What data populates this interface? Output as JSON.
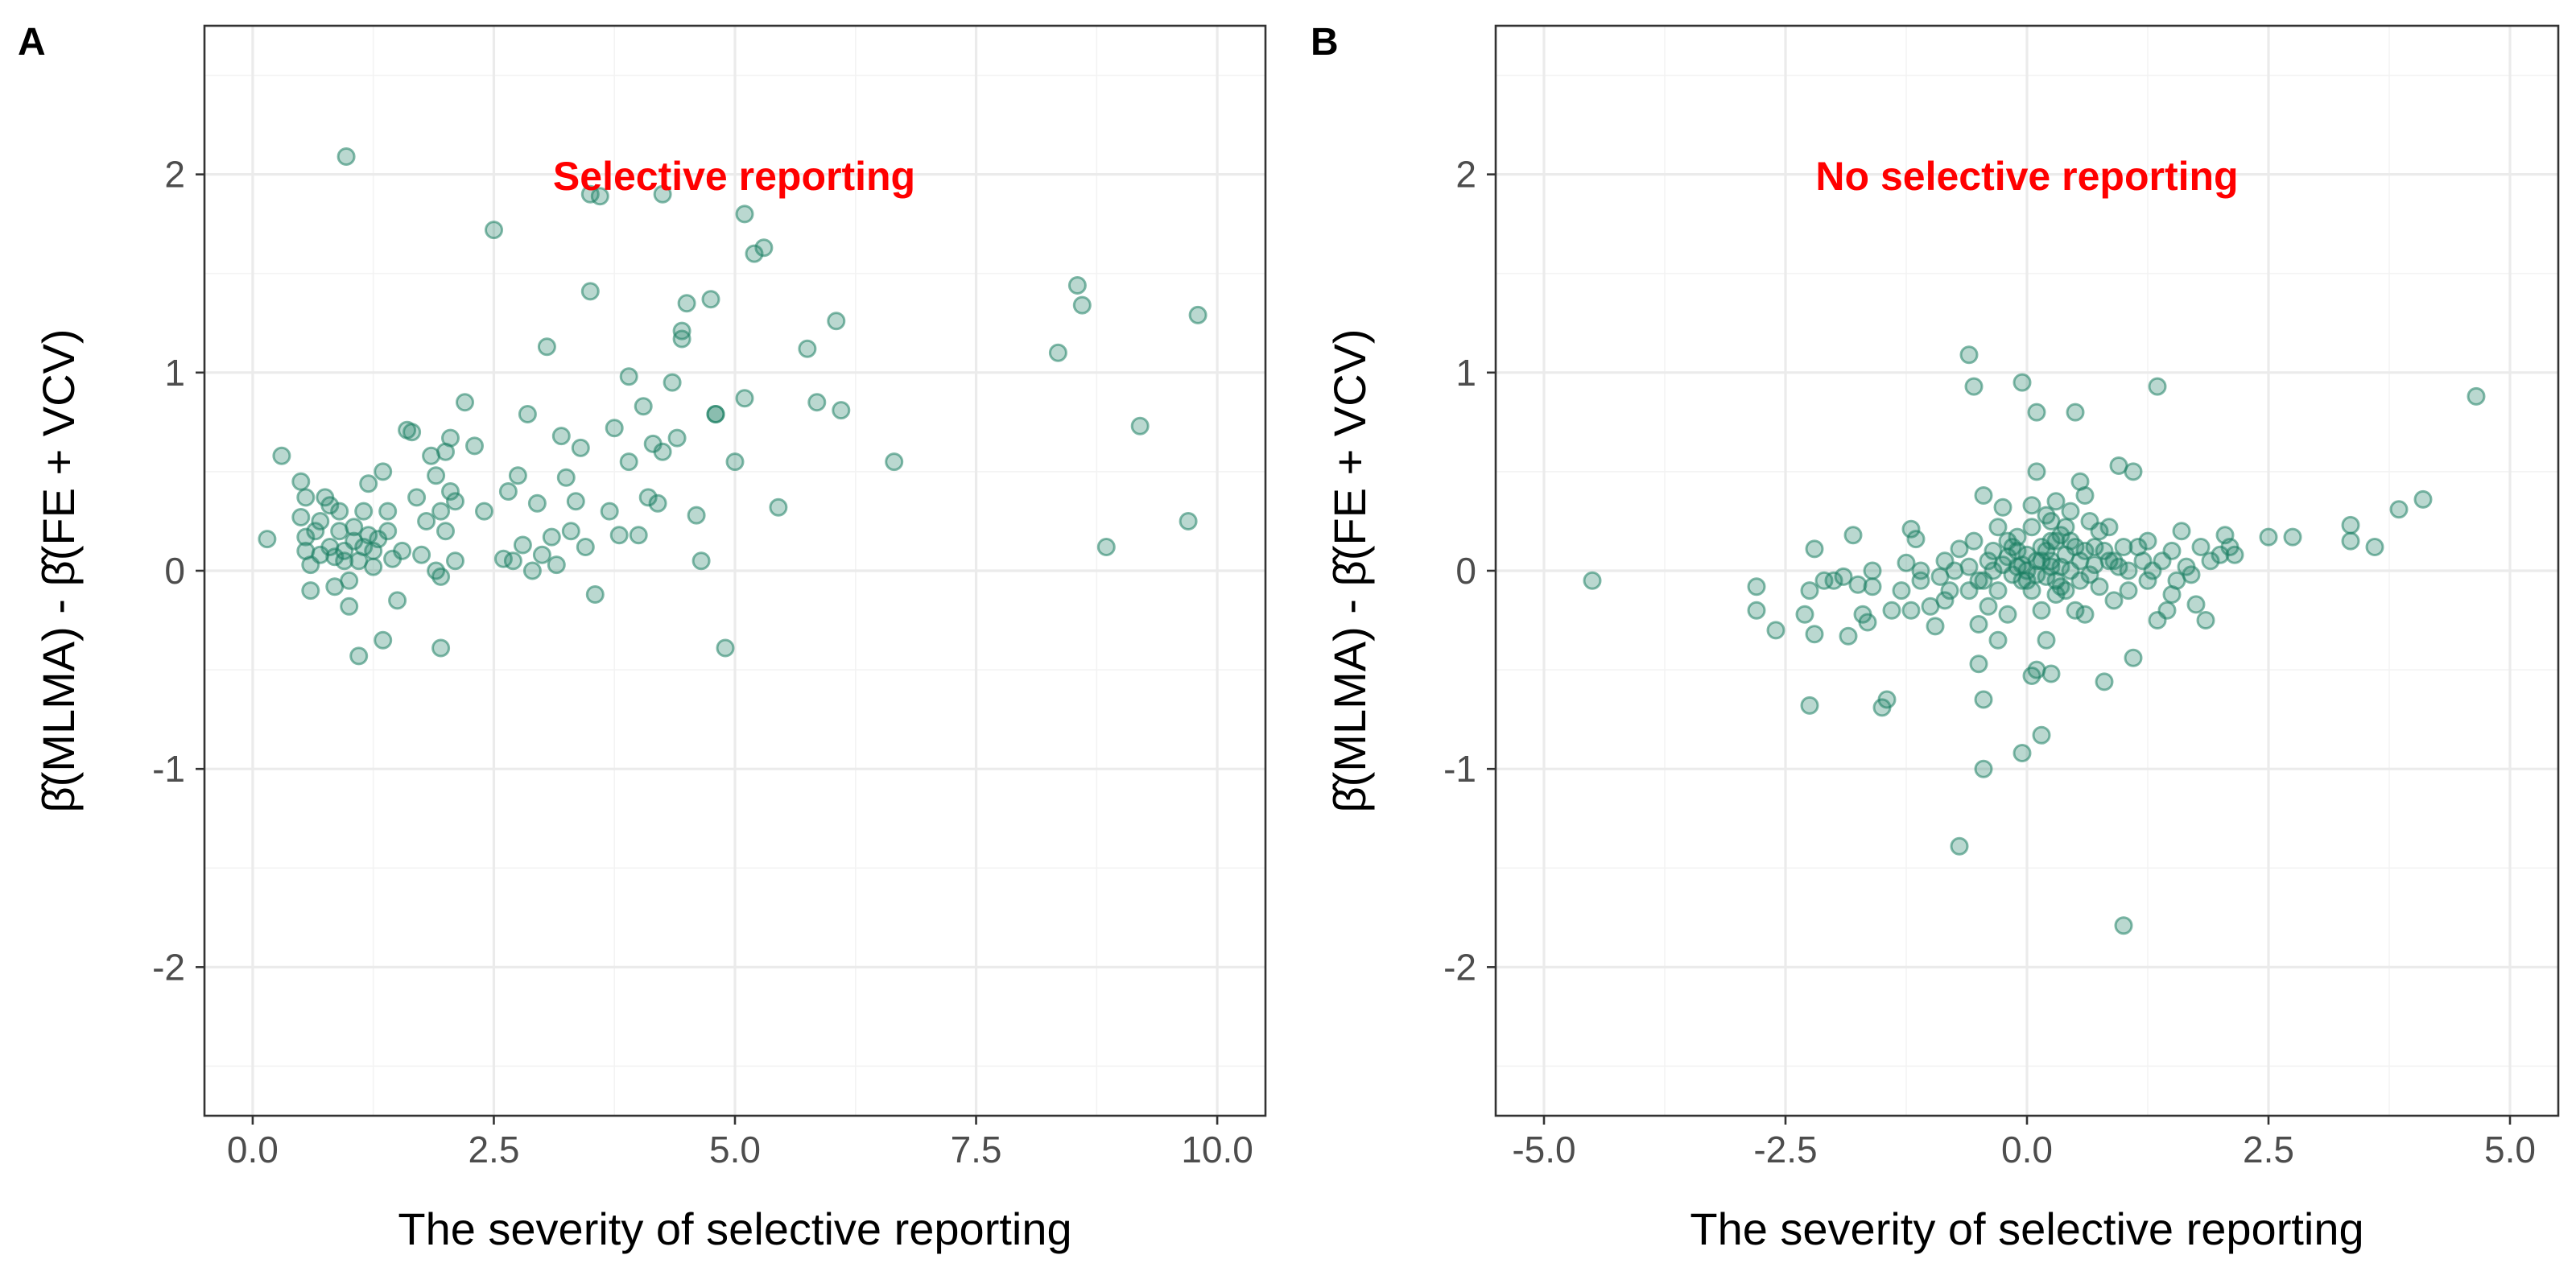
{
  "chart_data": [
    {
      "type": "scatter",
      "panel": "A",
      "annotation": "Selective reporting",
      "xlabel": "The severity of selective reporting",
      "ylabel": "β̂(MLMA) - β̂(FE + VCV)",
      "xlim": [
        -0.5,
        10.5
      ],
      "ylim": [
        -2.75,
        2.75
      ],
      "x_ticks": [
        0,
        2.5,
        5,
        7.5,
        10
      ],
      "x_tick_labels": [
        "0.0",
        "2.5",
        "5.0",
        "7.5",
        "10.0"
      ],
      "y_ticks": [
        -2,
        -1,
        0,
        1,
        2
      ],
      "y_tick_labels": [
        "-2",
        "-1",
        "0",
        "1",
        "2"
      ],
      "grid": true,
      "point_color": "#1b7f63",
      "annotation_color": "#ff0000",
      "points": [
        [
          0.15,
          0.16
        ],
        [
          0.3,
          0.58
        ],
        [
          0.5,
          0.45
        ],
        [
          0.5,
          0.27
        ],
        [
          0.55,
          0.37
        ],
        [
          0.55,
          0.17
        ],
        [
          0.55,
          0.1
        ],
        [
          0.6,
          0.03
        ],
        [
          0.6,
          -0.1
        ],
        [
          0.7,
          0.25
        ],
        [
          0.7,
          0.08
        ],
        [
          0.75,
          0.37
        ],
        [
          0.8,
          0.33
        ],
        [
          0.8,
          0.12
        ],
        [
          0.85,
          -0.08
        ],
        [
          0.85,
          0.07
        ],
        [
          0.9,
          0.3
        ],
        [
          0.9,
          0.2
        ],
        [
          0.95,
          0.1
        ],
        [
          0.95,
          0.05
        ],
        [
          0.97,
          2.09
        ],
        [
          1.0,
          -0.18
        ],
        [
          1.0,
          -0.05
        ],
        [
          1.05,
          0.15
        ],
        [
          1.05,
          0.22
        ],
        [
          1.1,
          -0.43
        ],
        [
          1.1,
          0.05
        ],
        [
          1.15,
          0.3
        ],
        [
          1.15,
          0.12
        ],
        [
          1.2,
          0.18
        ],
        [
          1.2,
          0.44
        ],
        [
          1.25,
          0.1
        ],
        [
          1.25,
          0.02
        ],
        [
          1.3,
          0.16
        ],
        [
          1.35,
          0.5
        ],
        [
          1.4,
          0.3
        ],
        [
          1.4,
          0.2
        ],
        [
          1.45,
          0.06
        ],
        [
          1.5,
          -0.15
        ],
        [
          1.55,
          0.1
        ],
        [
          1.6,
          0.71
        ],
        [
          1.65,
          0.7
        ],
        [
          1.7,
          0.37
        ],
        [
          1.75,
          0.08
        ],
        [
          1.8,
          0.25
        ],
        [
          1.85,
          0.58
        ],
        [
          1.9,
          0.0
        ],
        [
          1.9,
          0.48
        ],
        [
          1.95,
          -0.03
        ],
        [
          1.95,
          0.3
        ],
        [
          2.0,
          0.6
        ],
        [
          2.0,
          0.2
        ],
        [
          2.05,
          0.4
        ],
        [
          2.05,
          0.67
        ],
        [
          2.1,
          0.35
        ],
        [
          2.1,
          0.05
        ],
        [
          2.2,
          0.85
        ],
        [
          2.3,
          0.63
        ],
        [
          2.4,
          0.3
        ],
        [
          2.5,
          1.72
        ],
        [
          2.6,
          0.06
        ],
        [
          2.65,
          0.4
        ],
        [
          2.7,
          0.05
        ],
        [
          2.75,
          0.48
        ],
        [
          2.8,
          0.13
        ],
        [
          2.85,
          0.79
        ],
        [
          2.9,
          0.0
        ],
        [
          2.95,
          0.34
        ],
        [
          3.0,
          0.08
        ],
        [
          3.05,
          1.13
        ],
        [
          3.1,
          0.17
        ],
        [
          3.15,
          0.03
        ],
        [
          3.2,
          0.68
        ],
        [
          3.25,
          0.47
        ],
        [
          3.3,
          0.2
        ],
        [
          3.35,
          0.35
        ],
        [
          3.4,
          0.62
        ],
        [
          3.45,
          0.12
        ],
        [
          3.5,
          1.9
        ],
        [
          3.5,
          1.41
        ],
        [
          3.55,
          -0.12
        ],
        [
          3.6,
          1.89
        ],
        [
          3.7,
          0.3
        ],
        [
          3.75,
          0.72
        ],
        [
          3.8,
          0.18
        ],
        [
          3.9,
          0.55
        ],
        [
          3.9,
          0.98
        ],
        [
          4.0,
          0.18
        ],
        [
          4.05,
          0.83
        ],
        [
          4.1,
          0.37
        ],
        [
          4.15,
          0.64
        ],
        [
          4.2,
          0.34
        ],
        [
          4.25,
          1.9
        ],
        [
          4.25,
          0.6
        ],
        [
          4.35,
          0.95
        ],
        [
          4.4,
          0.67
        ],
        [
          4.45,
          1.21
        ],
        [
          4.45,
          1.17
        ],
        [
          4.5,
          1.35
        ],
        [
          4.6,
          0.28
        ],
        [
          4.65,
          0.05
        ],
        [
          4.75,
          1.37
        ],
        [
          4.8,
          0.79
        ],
        [
          4.8,
          0.79
        ],
        [
          4.9,
          -0.39
        ],
        [
          5.0,
          0.55
        ],
        [
          5.1,
          0.87
        ],
        [
          5.1,
          1.8
        ],
        [
          5.2,
          1.6
        ],
        [
          5.3,
          1.63
        ],
        [
          5.45,
          0.32
        ],
        [
          5.75,
          1.12
        ],
        [
          5.85,
          0.85
        ],
        [
          6.05,
          1.26
        ],
        [
          6.1,
          0.81
        ],
        [
          6.65,
          0.55
        ],
        [
          8.35,
          1.1
        ],
        [
          8.55,
          1.44
        ],
        [
          8.6,
          1.34
        ],
        [
          8.85,
          0.12
        ],
        [
          9.2,
          0.73
        ],
        [
          9.7,
          0.25
        ],
        [
          9.8,
          1.29
        ],
        [
          1.35,
          -0.35
        ],
        [
          1.95,
          -0.39
        ],
        [
          0.65,
          0.2
        ]
      ]
    },
    {
      "type": "scatter",
      "panel": "B",
      "annotation": "No selective reporting",
      "xlabel": "The severity of selective reporting",
      "ylabel": "β̂(MLMA) - β̂(FE + VCV)",
      "xlim": [
        -5.5,
        5.5
      ],
      "ylim": [
        -2.75,
        2.75
      ],
      "x_ticks": [
        -5,
        -2.5,
        0,
        2.5,
        5
      ],
      "x_tick_labels": [
        "-5.0",
        "-2.5",
        "0.0",
        "2.5",
        "5.0"
      ],
      "y_ticks": [
        -2,
        -1,
        0,
        1,
        2
      ],
      "y_tick_labels": [
        "-2",
        "-1",
        "0",
        "1",
        "2"
      ],
      "grid": true,
      "point_color": "#1b7f63",
      "annotation_color": "#ff0000",
      "points": [
        [
          -4.5,
          -0.05
        ],
        [
          -2.8,
          -0.08
        ],
        [
          -2.8,
          -0.2
        ],
        [
          -2.6,
          -0.3
        ],
        [
          -2.3,
          -0.22
        ],
        [
          -2.25,
          -0.68
        ],
        [
          -2.25,
          -0.1
        ],
        [
          -2.2,
          -0.32
        ],
        [
          -2.2,
          0.11
        ],
        [
          -2.1,
          -0.05
        ],
        [
          -2.0,
          -0.05
        ],
        [
          -1.9,
          -0.03
        ],
        [
          -1.85,
          -0.33
        ],
        [
          -1.8,
          0.18
        ],
        [
          -1.75,
          -0.07
        ],
        [
          -1.7,
          -0.22
        ],
        [
          -1.65,
          -0.26
        ],
        [
          -1.6,
          0.0
        ],
        [
          -1.6,
          -0.08
        ],
        [
          -1.5,
          -0.69
        ],
        [
          -1.45,
          -0.65
        ],
        [
          -1.4,
          -0.2
        ],
        [
          -1.3,
          -0.1
        ],
        [
          -1.25,
          0.04
        ],
        [
          -1.2,
          -0.2
        ],
        [
          -1.2,
          0.21
        ],
        [
          -1.15,
          0.16
        ],
        [
          -1.1,
          0.0
        ],
        [
          -1.1,
          -0.05
        ],
        [
          -1.0,
          -0.18
        ],
        [
          -0.95,
          -0.28
        ],
        [
          -0.9,
          -0.03
        ],
        [
          -0.85,
          0.05
        ],
        [
          -0.85,
          -0.15
        ],
        [
          -0.8,
          -0.1
        ],
        [
          -0.75,
          0.0
        ],
        [
          -0.7,
          -1.39
        ],
        [
          -0.7,
          0.11
        ],
        [
          -0.6,
          1.09
        ],
        [
          -0.6,
          -0.1
        ],
        [
          -0.55,
          0.93
        ],
        [
          -0.55,
          0.15
        ],
        [
          -0.5,
          -0.27
        ],
        [
          -0.5,
          -0.05
        ],
        [
          -0.5,
          -0.47
        ],
        [
          -0.45,
          -0.05
        ],
        [
          -0.45,
          0.38
        ],
        [
          -0.45,
          -0.65
        ],
        [
          -0.45,
          -1.0
        ],
        [
          -0.4,
          0.05
        ],
        [
          -0.4,
          -0.18
        ],
        [
          -0.35,
          0.0
        ],
        [
          -0.35,
          0.1
        ],
        [
          -0.3,
          0.22
        ],
        [
          -0.3,
          -0.35
        ],
        [
          -0.25,
          0.32
        ],
        [
          -0.25,
          0.03
        ],
        [
          -0.2,
          0.07
        ],
        [
          -0.2,
          -0.22
        ],
        [
          -0.15,
          0.12
        ],
        [
          -0.15,
          -0.02
        ],
        [
          -0.1,
          0.02
        ],
        [
          -0.1,
          0.17
        ],
        [
          -0.05,
          0.95
        ],
        [
          -0.05,
          -0.92
        ],
        [
          -0.05,
          -0.05
        ],
        [
          0.0,
          0.0
        ],
        [
          0.0,
          0.08
        ],
        [
          0.05,
          -0.1
        ],
        [
          0.05,
          -0.53
        ],
        [
          0.05,
          0.22
        ],
        [
          0.1,
          0.5
        ],
        [
          0.1,
          0.8
        ],
        [
          0.1,
          -0.5
        ],
        [
          0.1,
          0.05
        ],
        [
          0.15,
          -0.2
        ],
        [
          0.15,
          0.12
        ],
        [
          0.15,
          -0.83
        ],
        [
          0.2,
          0.1
        ],
        [
          0.2,
          -0.03
        ],
        [
          0.2,
          -0.35
        ],
        [
          0.25,
          0.25
        ],
        [
          0.25,
          -0.52
        ],
        [
          0.25,
          0.05
        ],
        [
          0.3,
          0.15
        ],
        [
          0.3,
          -0.05
        ],
        [
          0.3,
          0.35
        ],
        [
          0.35,
          0.02
        ],
        [
          0.35,
          0.18
        ],
        [
          0.4,
          -0.1
        ],
        [
          0.4,
          0.08
        ],
        [
          0.45,
          0.3
        ],
        [
          0.45,
          0.0
        ],
        [
          0.5,
          0.8
        ],
        [
          0.5,
          -0.2
        ],
        [
          0.5,
          0.12
        ],
        [
          0.55,
          0.45
        ],
        [
          0.55,
          -0.05
        ],
        [
          0.6,
          0.38
        ],
        [
          0.6,
          0.1
        ],
        [
          0.6,
          -0.22
        ],
        [
          0.65,
          0.25
        ],
        [
          0.7,
          0.03
        ],
        [
          0.75,
          0.2
        ],
        [
          0.75,
          -0.08
        ],
        [
          0.8,
          0.1
        ],
        [
          0.8,
          -0.56
        ],
        [
          0.85,
          0.22
        ],
        [
          0.9,
          0.05
        ],
        [
          0.95,
          0.02
        ],
        [
          0.95,
          0.53
        ],
        [
          1.0,
          -1.79
        ],
        [
          1.0,
          0.12
        ],
        [
          1.05,
          0.0
        ],
        [
          1.05,
          -0.1
        ],
        [
          1.1,
          0.5
        ],
        [
          1.1,
          -0.44
        ],
        [
          1.15,
          0.12
        ],
        [
          1.2,
          0.05
        ],
        [
          1.25,
          0.15
        ],
        [
          1.3,
          0.0
        ],
        [
          1.35,
          0.93
        ],
        [
          1.35,
          -0.25
        ],
        [
          1.4,
          0.05
        ],
        [
          1.45,
          -0.2
        ],
        [
          1.5,
          0.1
        ],
        [
          1.5,
          -0.12
        ],
        [
          1.55,
          -0.05
        ],
        [
          1.6,
          0.2
        ],
        [
          1.65,
          0.02
        ],
        [
          1.7,
          -0.02
        ],
        [
          1.75,
          -0.17
        ],
        [
          1.8,
          0.12
        ],
        [
          1.85,
          -0.25
        ],
        [
          1.9,
          0.05
        ],
        [
          2.0,
          0.08
        ],
        [
          2.05,
          0.18
        ],
        [
          2.1,
          0.12
        ],
        [
          2.15,
          0.08
        ],
        [
          2.5,
          0.17
        ],
        [
          2.75,
          0.17
        ],
        [
          3.35,
          0.23
        ],
        [
          3.35,
          0.15
        ],
        [
          3.6,
          0.12
        ],
        [
          3.85,
          0.31
        ],
        [
          4.1,
          0.36
        ],
        [
          4.65,
          0.88
        ],
        [
          0.25,
          0.02
        ],
        [
          0.15,
          0.05
        ],
        [
          0.35,
          -0.08
        ],
        [
          -0.05,
          0.03
        ],
        [
          0.0,
          -0.05
        ],
        [
          0.45,
          0.15
        ],
        [
          0.55,
          0.05
        ],
        [
          0.2,
          0.28
        ],
        [
          0.3,
          -0.12
        ],
        [
          0.4,
          0.22
        ],
        [
          -0.2,
          0.15
        ],
        [
          0.65,
          -0.02
        ],
        [
          0.7,
          0.12
        ],
        [
          0.85,
          0.05
        ],
        [
          0.9,
          -0.15
        ],
        [
          1.25,
          -0.05
        ],
        [
          -0.6,
          0.02
        ],
        [
          -0.3,
          -0.1
        ],
        [
          -0.1,
          0.1
        ],
        [
          0.05,
          0.33
        ],
        [
          0.25,
          0.15
        ],
        [
          0.1,
          -0.02
        ]
      ]
    }
  ]
}
